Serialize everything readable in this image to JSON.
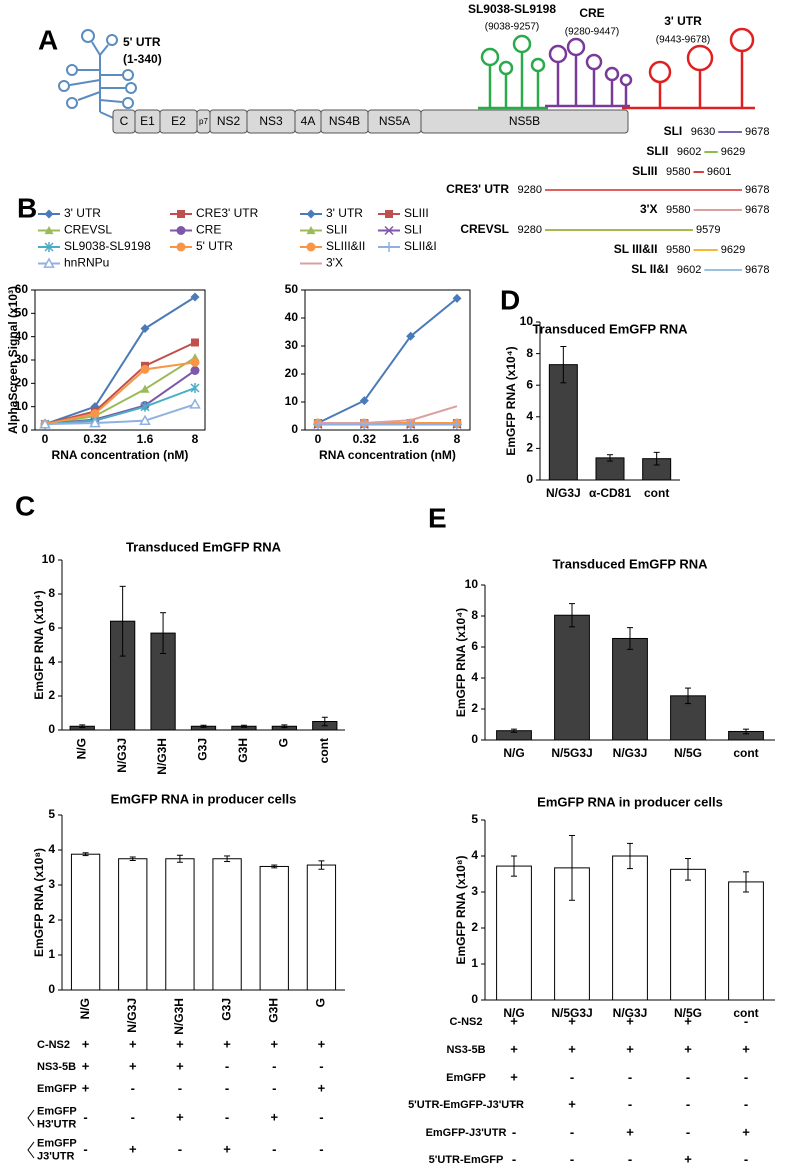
{
  "panel_labels": [
    "A",
    "B",
    "C",
    "D",
    "E"
  ],
  "genome": {
    "utr5_label": "5' UTR",
    "utr5_range": "(1-340)",
    "sl_label": "SL9038-SL9198",
    "sl_range": "(9038-9257)",
    "cre_label": "CRE",
    "cre_range": "(9280-9447)",
    "utr3_label": "3' UTR",
    "utr3_range": "(9443-9678)",
    "genes": [
      "C",
      "E1",
      "E2",
      "p7",
      "NS2",
      "NS3",
      "4A",
      "NS4B",
      "NS5A",
      "NS5B"
    ],
    "regions": [
      {
        "name": "SLI",
        "start": 9630,
        "end": 9678,
        "color": "#7b68b5"
      },
      {
        "name": "SLII",
        "start": 9602,
        "end": 9629,
        "color": "#8cbf4a"
      },
      {
        "name": "SLIII",
        "start": 9580,
        "end": 9601,
        "color": "#d04040"
      },
      {
        "name": "CRE3' UTR",
        "start": 9280,
        "end": 9678,
        "color": "#e06060"
      },
      {
        "name": "3'X",
        "start": 9580,
        "end": 9678,
        "color": "#d9a0a0"
      },
      {
        "name": "CREVSL",
        "start": 9280,
        "end": 9579,
        "color": "#a8b850"
      },
      {
        "name": "SL III&II",
        "start": 9580,
        "end": 9629,
        "color": "#f5b830"
      },
      {
        "name": "SL II&I",
        "start": 9602,
        "end": 9678,
        "color": "#9ac0e0"
      }
    ]
  },
  "chart_data": [
    {
      "type": "line",
      "y_label": "AlphaScreen Signal (x10³)",
      "x_label": "RNA concentration (nM)",
      "categories": [
        "0",
        "0.32",
        "1.6",
        "8"
      ],
      "ylim": [
        0,
        60
      ],
      "yticks": [
        0,
        10,
        20,
        30,
        40,
        50,
        60
      ],
      "series": [
        {
          "name": "3' UTR",
          "color": "#4a7ab8",
          "marker": "diamond",
          "values": [
            2.5,
            10,
            43.5,
            57
          ]
        },
        {
          "name": "CRE3' UTR",
          "color": "#c0504d",
          "marker": "square",
          "values": [
            2.5,
            8,
            27.5,
            37.5
          ]
        },
        {
          "name": "CREVSL",
          "color": "#9bbb59",
          "marker": "triangle",
          "values": [
            2.5,
            6,
            17.5,
            31
          ]
        },
        {
          "name": "CRE",
          "color": "#7e57a8",
          "marker": "circle",
          "values": [
            2.5,
            4.5,
            10.5,
            25.5
          ]
        },
        {
          "name": "SL9038-SL9198",
          "color": "#4bacc6",
          "marker": "star",
          "values": [
            2.5,
            4,
            10,
            18
          ]
        },
        {
          "name": "5' UTR",
          "color": "#f79646",
          "marker": "circle",
          "values": [
            2.5,
            7,
            26,
            29
          ]
        },
        {
          "name": "hnRNPu",
          "color": "#8fb0e0",
          "marker": "triangle-open",
          "values": [
            2.5,
            3,
            4,
            11
          ]
        }
      ]
    },
    {
      "type": "line",
      "x_label": "RNA concentration (nM)",
      "categories": [
        "0",
        "0.32",
        "1.6",
        "8"
      ],
      "ylim": [
        0,
        50
      ],
      "yticks": [
        0,
        10,
        20,
        30,
        40,
        50
      ],
      "series": [
        {
          "name": "3' UTR",
          "color": "#4a7ab8",
          "marker": "diamond",
          "values": [
            2.5,
            10.5,
            33.5,
            47
          ]
        },
        {
          "name": "SLIII",
          "color": "#c0504d",
          "marker": "square",
          "values": [
            2.5,
            2.5,
            2.5,
            2.5
          ]
        },
        {
          "name": "SLII",
          "color": "#9bbb59",
          "marker": "triangle",
          "values": [
            2,
            2,
            2,
            2
          ]
        },
        {
          "name": "SLI",
          "color": "#7e57a8",
          "marker": "x",
          "values": [
            2,
            2,
            2,
            2
          ]
        },
        {
          "name": "SLIII&II",
          "color": "#f79646",
          "marker": "circle",
          "values": [
            2.5,
            2.5,
            2.5,
            2.5
          ]
        },
        {
          "name": "SLII&I",
          "color": "#8fb0e0",
          "marker": "plus",
          "values": [
            2,
            2,
            2,
            2
          ]
        },
        {
          "name": "3'X",
          "color": "#d9a0a0",
          "marker": "none",
          "values": [
            2.5,
            2.5,
            3.5,
            8.5
          ]
        }
      ]
    },
    {
      "type": "bar",
      "title": "Transduced EmGFP RNA",
      "y_label": "EmGFP RNA (x10⁴)",
      "color": "#404040",
      "categories": [
        "N/G3J",
        "α-CD81",
        "cont"
      ],
      "values": [
        7.3,
        1.4,
        1.35
      ],
      "errors": [
        1.15,
        0.2,
        0.4
      ],
      "ylim": [
        0,
        10
      ],
      "yticks": [
        0,
        2,
        4,
        6,
        8,
        10
      ]
    },
    {
      "type": "bar",
      "title": "Transduced EmGFP RNA",
      "y_label": "EmGFP RNA (x10⁴)",
      "color": "#404040",
      "categories": [
        "N/G",
        "N/G3J",
        "N/G3H",
        "G3J",
        "G3H",
        "G",
        "cont"
      ],
      "values": [
        0.22,
        6.4,
        5.7,
        0.22,
        0.22,
        0.22,
        0.5
      ],
      "errors": [
        0.08,
        2.05,
        1.2,
        0.06,
        0.06,
        0.08,
        0.25
      ],
      "ylim": [
        0,
        10
      ],
      "yticks": [
        0,
        2,
        4,
        6,
        8,
        10
      ]
    },
    {
      "type": "bar",
      "title": "EmGFP RNA in producer cells",
      "y_label": "EmGFP RNA (x10⁸)",
      "color": "#ffffff",
      "categories": [
        "N/G",
        "N/G3J",
        "N/G3H",
        "G3J",
        "G3H",
        "G"
      ],
      "values": [
        3.88,
        3.75,
        3.75,
        3.75,
        3.53,
        3.57
      ],
      "errors": [
        0.04,
        0.05,
        0.1,
        0.08,
        0.04,
        0.12
      ],
      "ylim": [
        0,
        5
      ],
      "yticks": [
        0,
        1,
        2,
        3,
        4,
        5
      ]
    },
    {
      "type": "bar",
      "title": "Transduced EmGFP RNA",
      "y_label": "EmGFP RNA (x10⁴)",
      "color": "#404040",
      "categories": [
        "N/G",
        "N/5G3J",
        "N/G3J",
        "N/5G",
        "cont"
      ],
      "values": [
        0.6,
        8.05,
        6.55,
        2.85,
        0.55
      ],
      "errors": [
        0.1,
        0.75,
        0.7,
        0.5,
        0.15
      ],
      "ylim": [
        0,
        10
      ],
      "yticks": [
        0,
        2,
        4,
        6,
        8,
        10
      ]
    },
    {
      "type": "bar",
      "title": "EmGFP RNA in producer cells",
      "y_label": "EmGFP RNA (x10⁸)",
      "color": "#ffffff",
      "categories": [
        "N/G",
        "N/5G3J",
        "N/G3J",
        "N/5G",
        "cont"
      ],
      "values": [
        3.72,
        3.67,
        4.0,
        3.63,
        3.28
      ],
      "errors": [
        0.28,
        0.9,
        0.35,
        0.3,
        0.28
      ],
      "ylim": [
        0,
        5
      ],
      "yticks": [
        0,
        1,
        2,
        3,
        4,
        5
      ]
    }
  ],
  "tables": [
    {
      "rows": [
        {
          "label": [
            "C-NS2"
          ],
          "marks": [
            "+",
            "+",
            "+",
            "+",
            "+",
            "+"
          ]
        },
        {
          "label": [
            "NS3-5B"
          ],
          "marks": [
            "+",
            "+",
            "+",
            "-",
            "-",
            "-"
          ]
        },
        {
          "label": [
            "EmGFP"
          ],
          "marks": [
            "+",
            "-",
            "-",
            "-",
            "-",
            "+"
          ]
        },
        {
          "label": [
            "EmGFP",
            "H3'UTR"
          ],
          "marks": [
            "-",
            "-",
            "+",
            "-",
            "+",
            "-"
          ]
        },
        {
          "label": [
            "EmGFP",
            "J3'UTR"
          ],
          "marks": [
            "-",
            "+",
            "-",
            "+",
            "-",
            "-"
          ]
        }
      ]
    },
    {
      "rows": [
        {
          "label": [
            "C-NS2"
          ],
          "marks": [
            "+",
            "+",
            "+",
            "+",
            "-"
          ]
        },
        {
          "label": [
            "NS3-5B"
          ],
          "marks": [
            "+",
            "+",
            "+",
            "+",
            "+"
          ]
        },
        {
          "label": [
            "EmGFP"
          ],
          "marks": [
            "+",
            "-",
            "-",
            "-",
            "-"
          ]
        },
        {
          "label": [
            "5'UTR-EmGFP-J3'UTR"
          ],
          "marks": [
            "-",
            "+",
            "-",
            "-",
            "-"
          ]
        },
        {
          "label": [
            "EmGFP-J3'UTR"
          ],
          "marks": [
            "-",
            "-",
            "+",
            "-",
            "+"
          ]
        },
        {
          "label": [
            "5'UTR-EmGFP"
          ],
          "marks": [
            "-",
            "-",
            "-",
            "+",
            "-"
          ]
        }
      ]
    }
  ]
}
